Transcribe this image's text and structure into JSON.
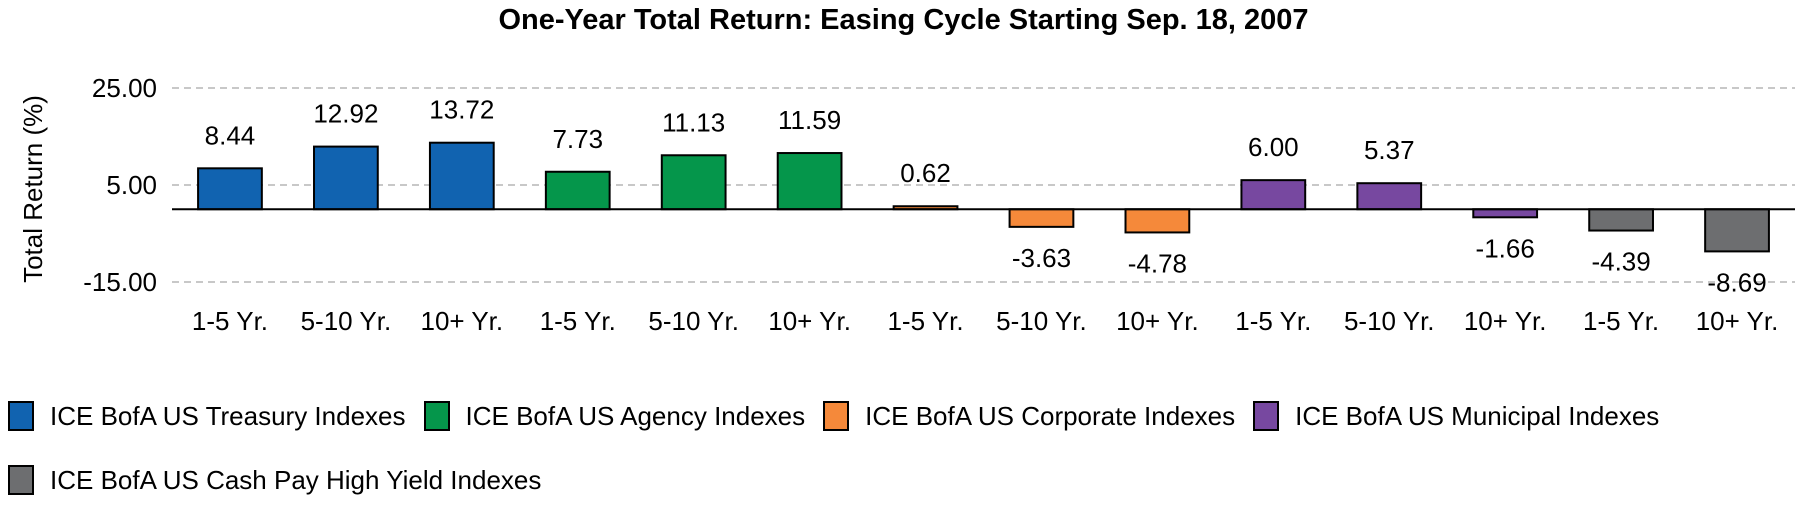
{
  "chart_data": {
    "type": "bar",
    "title": "One-Year Total Return: Easing Cycle Starting Sep. 18, 2007",
    "ylabel": "Total Return (%)",
    "xlabel": "",
    "ylim": [
      -15,
      25
    ],
    "yticks": [
      25,
      5,
      -15
    ],
    "ytick_labels": [
      "25.00",
      "5.00",
      "-15.00"
    ],
    "grid": true,
    "legend_position": "bottom",
    "categories": [
      "1-5 Yr.",
      "5-10 Yr.",
      "10+ Yr.",
      "1-5 Yr.",
      "5-10 Yr.",
      "10+ Yr.",
      "1-5 Yr.",
      "5-10 Yr.",
      "10+ Yr.",
      "1-5 Yr.",
      "5-10 Yr.",
      "10+ Yr.",
      "1-5 Yr.",
      "10+ Yr."
    ],
    "values": [
      8.44,
      12.92,
      13.72,
      7.73,
      11.13,
      11.59,
      0.62,
      -3.63,
      -4.78,
      6.0,
      5.37,
      -1.66,
      -4.39,
      -8.69
    ],
    "value_labels": [
      "8.44",
      "12.92",
      "13.72",
      "7.73",
      "11.13",
      "11.59",
      "0.62",
      "-3.63",
      "-4.78",
      "6.00",
      "5.37",
      "-1.66",
      "-4.39",
      "-8.69"
    ],
    "bar_series": [
      0,
      0,
      0,
      1,
      1,
      1,
      2,
      2,
      2,
      3,
      3,
      3,
      4,
      4
    ],
    "series": [
      {
        "name": "ICE BofA US Treasury Indexes",
        "color": "#1163b0"
      },
      {
        "name": "ICE BofA US Agency Indexes",
        "color": "#05964b"
      },
      {
        "name": "ICE BofA US Corporate Indexes",
        "color": "#f5893a"
      },
      {
        "name": "ICE BofA US Municipal Indexes",
        "color": "#7748a0"
      },
      {
        "name": "ICE BofA US Cash Pay High Yield Indexes",
        "color": "#6d6e70"
      }
    ]
  }
}
